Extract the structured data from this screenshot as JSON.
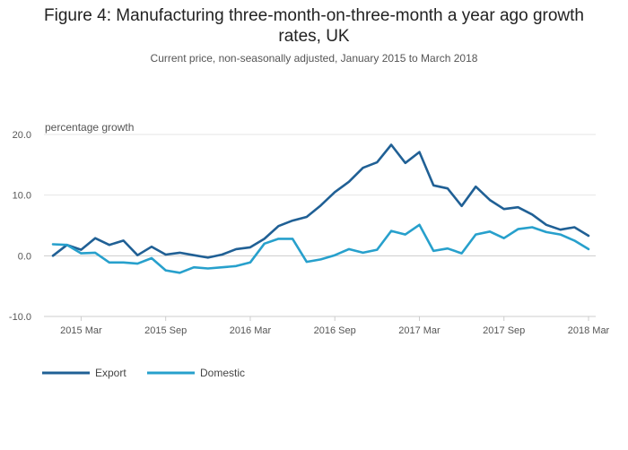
{
  "header": {
    "title_line1": "Figure 4: Manufacturing three-month-on-three-month a year ago growth",
    "title_line2": "rates, UK",
    "subtitle": "Current price, non-seasonally adjusted, January 2015 to March 2018"
  },
  "chart_data": {
    "type": "line",
    "title": "Figure 4: Manufacturing three-month-on-three-month a year ago growth rates, UK",
    "subtitle": "Current price, non-seasonally adjusted, January 2015 to March 2018",
    "ylabel": "percentage growth",
    "xlabel": "",
    "ylim": [
      -10,
      20
    ],
    "yticks": [
      -10,
      0,
      10,
      20
    ],
    "ytick_labels": [
      "-10.0",
      "0.0",
      "10.0",
      "20.0"
    ],
    "xtick_indices": [
      2,
      8,
      14,
      20,
      26,
      32,
      38
    ],
    "xtick_labels": [
      "2015 Mar",
      "2015 Sep",
      "2016 Mar",
      "2016 Sep",
      "2017 Mar",
      "2017 Sep",
      "2018 Mar"
    ],
    "x": [
      "2015 Jan",
      "2015 Feb",
      "2015 Mar",
      "2015 Apr",
      "2015 May",
      "2015 Jun",
      "2015 Jul",
      "2015 Aug",
      "2015 Sep",
      "2015 Oct",
      "2015 Nov",
      "2015 Dec",
      "2016 Jan",
      "2016 Feb",
      "2016 Mar",
      "2016 Apr",
      "2016 May",
      "2016 Jun",
      "2016 Jul",
      "2016 Aug",
      "2016 Sep",
      "2016 Oct",
      "2016 Nov",
      "2016 Dec",
      "2017 Jan",
      "2017 Feb",
      "2017 Mar",
      "2017 Apr",
      "2017 May",
      "2017 Jun",
      "2017 Jul",
      "2017 Aug",
      "2017 Sep",
      "2017 Oct",
      "2017 Nov",
      "2017 Dec",
      "2018 Jan",
      "2018 Feb",
      "2018 Mar"
    ],
    "series": [
      {
        "name": "Export",
        "color": "#206095",
        "values": [
          0.0,
          1.8,
          1.0,
          2.9,
          1.8,
          2.5,
          0.1,
          1.5,
          0.2,
          0.5,
          0.1,
          -0.3,
          0.2,
          1.1,
          1.4,
          2.8,
          4.9,
          5.8,
          6.4,
          8.3,
          10.5,
          12.2,
          14.5,
          15.4,
          18.3,
          15.3,
          17.1,
          11.6,
          11.1,
          8.2,
          11.4,
          9.2,
          7.7,
          8.0,
          6.8,
          5.1,
          4.3,
          4.7,
          3.3
        ]
      },
      {
        "name": "Domestic",
        "color": "#27a0cc",
        "values": [
          1.9,
          1.8,
          0.4,
          0.5,
          -1.1,
          -1.1,
          -1.3,
          -0.4,
          -2.4,
          -2.8,
          -1.9,
          -2.1,
          -1.9,
          -1.7,
          -1.1,
          2.0,
          2.8,
          2.8,
          -1.0,
          -0.6,
          0.1,
          1.1,
          0.5,
          1.0,
          4.1,
          3.5,
          5.1,
          0.8,
          1.2,
          0.4,
          3.5,
          4.0,
          2.9,
          4.4,
          4.7,
          3.9,
          3.5,
          2.5,
          1.1
        ]
      }
    ],
    "legend_position": "bottom-left"
  }
}
